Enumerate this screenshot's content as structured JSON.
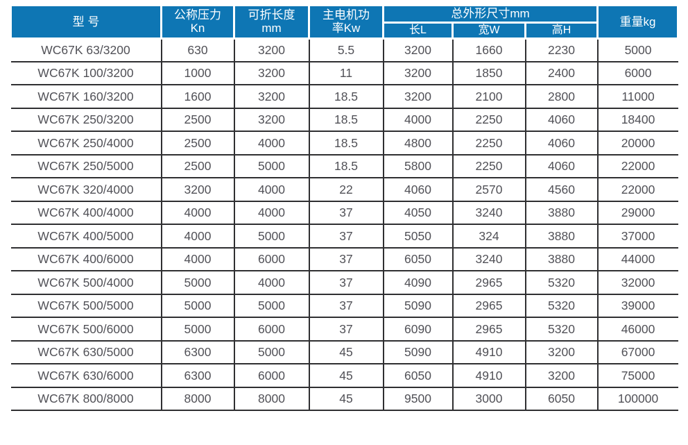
{
  "table": {
    "header": {
      "model": "型 号",
      "pressure_line1": "公称压力",
      "pressure_line2": "Kn",
      "fold_length_line1": "可折长度",
      "fold_length_line2": "mm",
      "motor_power_line1": "主电机功",
      "motor_power_line2": "率Kw",
      "dimensions_group": "总外形尺寸mm",
      "dim_length": "长L",
      "dim_width": "宽W",
      "dim_height": "高H",
      "weight": "重量kg"
    },
    "rows": [
      [
        "WC67K 63/3200",
        "630",
        "3200",
        "5.5",
        "3200",
        "1660",
        "2230",
        "5000"
      ],
      [
        "WC67K 100/3200",
        "1000",
        "3200",
        "11",
        "3200",
        "1850",
        "2400",
        "6000"
      ],
      [
        "WC67K 160/3200",
        "1600",
        "3200",
        "18.5",
        "3200",
        "2100",
        "2800",
        "11000"
      ],
      [
        "WC67K 250/3200",
        "2500",
        "3200",
        "18.5",
        "4000",
        "2250",
        "4060",
        "18400"
      ],
      [
        "WC67K 250/4000",
        "2500",
        "4000",
        "18.5",
        "4800",
        "2250",
        "4060",
        "20000"
      ],
      [
        "WC67K 250/5000",
        "2500",
        "5000",
        "18.5",
        "5800",
        "2250",
        "4060",
        "22000"
      ],
      [
        "WC67K 320/4000",
        "3200",
        "4000",
        "22",
        "4060",
        "2570",
        "4560",
        "22000"
      ],
      [
        "WC67K 400/4000",
        "4000",
        "4000",
        "37",
        "4050",
        "3240",
        "3880",
        "29000"
      ],
      [
        "WC67K 400/5000",
        "4000",
        "5000",
        "37",
        "5050",
        "324",
        "3880",
        "37000"
      ],
      [
        "WC67K 400/6000",
        "4000",
        "6000",
        "37",
        "6050",
        "3240",
        "3880",
        "44000"
      ],
      [
        "WC67K 500/4000",
        "5000",
        "4000",
        "37",
        "4090",
        "2965",
        "5320",
        "32000"
      ],
      [
        "WC67K 500/5000",
        "5000",
        "5000",
        "37",
        "5090",
        "2965",
        "5320",
        "39000"
      ],
      [
        "WC67K 500/6000",
        "5000",
        "6000",
        "37",
        "6090",
        "2965",
        "5320",
        "46000"
      ],
      [
        "WC67K 630/5000",
        "6300",
        "5000",
        "45",
        "5090",
        "4910",
        "3200",
        "67000"
      ],
      [
        "WC67K 630/6000",
        "6300",
        "6000",
        "45",
        "6050",
        "4910",
        "3200",
        "75000"
      ],
      [
        "WC67K 800/8000",
        "8000",
        "8000",
        "45",
        "9500",
        "3000",
        "6050",
        "100000"
      ]
    ]
  },
  "colors": {
    "header_bg": "#0e76b4",
    "body_text": "#515157",
    "border": "#2f2f31"
  }
}
